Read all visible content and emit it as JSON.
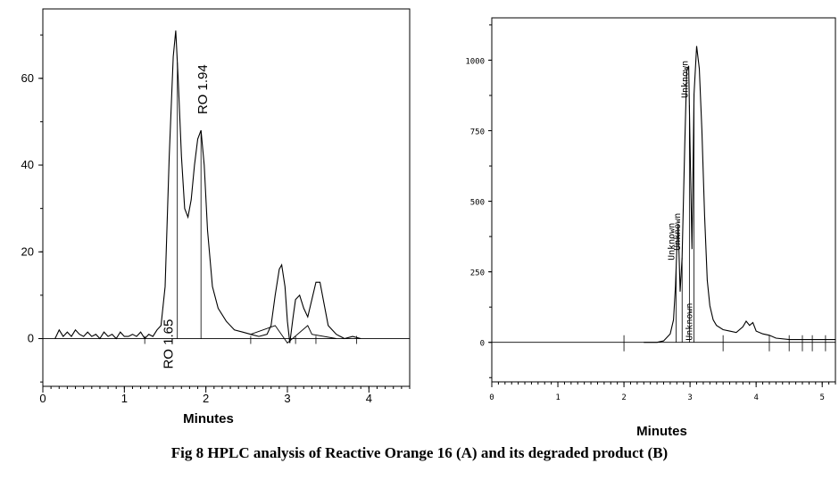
{
  "caption": "Fig 8 HPLC analysis of Reactive Orange 16 (A) and its degraded product (B)",
  "chart_data": [
    {
      "type": "line",
      "panel": "A",
      "xlabel": "Minutes",
      "ylabel": "",
      "xlim": [
        0,
        4.5
      ],
      "ylim": [
        -11,
        76
      ],
      "xticks": [
        0,
        1,
        2,
        3,
        4
      ],
      "xtick_labels": [
        "0",
        "1",
        "2",
        "3",
        "4"
      ],
      "yticks": [
        0,
        20,
        40,
        60
      ],
      "ytick_labels": [
        "0",
        "20",
        "40",
        "60"
      ],
      "series": [
        {
          "x": [
            0.15,
            0.2,
            0.25,
            0.3,
            0.35,
            0.4,
            0.45,
            0.5,
            0.55,
            0.6,
            0.65,
            0.7,
            0.75,
            0.8,
            0.85,
            0.9,
            0.95,
            1.0,
            1.05,
            1.1,
            1.15,
            1.2,
            1.25,
            1.3,
            1.35,
            1.4,
            1.45,
            1.5,
            1.55,
            1.6,
            1.63,
            1.66,
            1.7,
            1.74,
            1.78,
            1.82,
            1.86,
            1.9,
            1.94,
            1.98,
            2.02,
            2.08,
            2.15,
            2.25,
            2.35,
            2.45,
            2.55,
            2.65,
            2.75,
            2.8,
            2.85,
            2.9,
            2.93,
            2.97,
            3.0,
            3.03,
            3.07,
            3.1,
            3.15,
            3.2,
            3.25,
            3.3,
            3.35,
            3.4,
            3.45,
            3.5,
            3.55,
            3.6,
            3.7,
            3.8,
            3.9
          ],
          "y": [
            0,
            2,
            0.5,
            1.5,
            0.5,
            2,
            1,
            0.5,
            1.5,
            0.5,
            1,
            0,
            1.5,
            0.5,
            1,
            0,
            1.5,
            0.5,
            0.5,
            1,
            0.5,
            1.5,
            0,
            1,
            0.5,
            2,
            3,
            12,
            42,
            65,
            71,
            60,
            42,
            30,
            28,
            32,
            40,
            46,
            48,
            40,
            25,
            12,
            7,
            4,
            2,
            1.5,
            1,
            0.5,
            1,
            3,
            10,
            16,
            17,
            12,
            4,
            -1,
            5,
            9,
            10,
            7,
            5,
            9,
            13,
            13,
            8,
            3,
            2,
            1,
            0,
            0.5,
            0
          ],
          "markers": [
            {
              "x": 1.65,
              "label": "RO 1.65"
            },
            {
              "x": 1.94,
              "label": "RO 1.94"
            }
          ]
        }
      ]
    },
    {
      "type": "line",
      "panel": "B",
      "xlabel": "Minutes",
      "ylabel": "",
      "xlim": [
        0,
        5.2
      ],
      "ylim": [
        -140,
        1150
      ],
      "xticks": [
        0,
        1,
        2,
        3,
        4,
        5
      ],
      "xtick_labels": [
        "0",
        "1",
        "2",
        "3",
        "4",
        "5"
      ],
      "yticks": [
        0,
        250,
        500,
        750,
        1000
      ],
      "ytick_labels": [
        "0",
        "250",
        "500",
        "750",
        "1000"
      ],
      "series": [
        {
          "x": [
            2.3,
            2.5,
            2.6,
            2.7,
            2.75,
            2.78,
            2.8,
            2.82,
            2.85,
            2.88,
            2.92,
            2.95,
            2.98,
            3.0,
            3.03,
            3.06,
            3.1,
            3.14,
            3.18,
            3.22,
            3.26,
            3.3,
            3.35,
            3.4,
            3.5,
            3.6,
            3.7,
            3.8,
            3.85,
            3.9,
            3.95,
            4.0,
            4.1,
            4.2,
            4.3,
            4.5,
            5.2
          ],
          "y": [
            0,
            0,
            5,
            30,
            80,
            200,
            330,
            420,
            180,
            300,
            700,
            960,
            980,
            700,
            330,
            880,
            1050,
            970,
            750,
            450,
            220,
            130,
            80,
            60,
            45,
            40,
            35,
            55,
            75,
            60,
            70,
            40,
            30,
            25,
            15,
            10,
            10
          ],
          "markers": [
            {
              "x": 2.79,
              "label": "Unknown"
            },
            {
              "x": 2.88,
              "label": "Unknown"
            },
            {
              "x": 2.99,
              "label": "Unknown"
            },
            {
              "x": 3.06,
              "label": "Unknown"
            }
          ]
        }
      ]
    }
  ]
}
